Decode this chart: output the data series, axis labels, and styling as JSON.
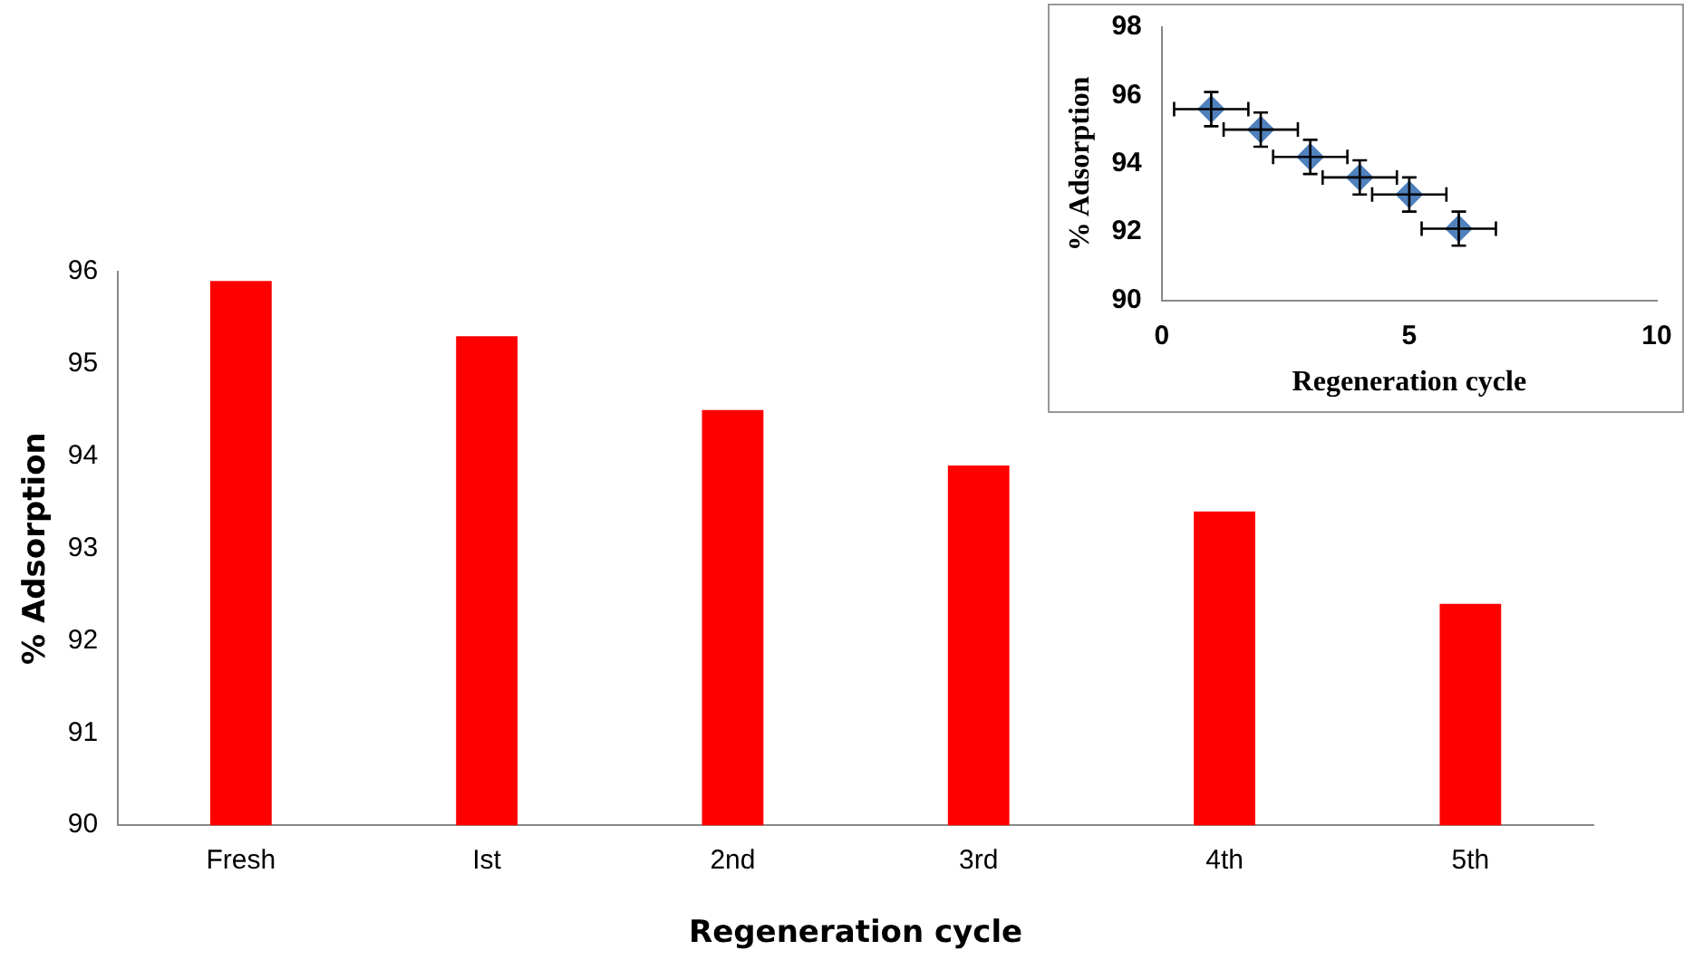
{
  "chart_data": [
    {
      "type": "bar",
      "xlabel": "Regeneration cycle",
      "ylabel": "% Adsorption",
      "categories": [
        "Fresh",
        "Ist",
        "2nd",
        "3rd",
        "4th",
        "5th"
      ],
      "values": [
        95.9,
        95.3,
        94.5,
        93.9,
        93.4,
        92.4
      ],
      "color": "#ff0000",
      "ylim": [
        90,
        96
      ],
      "yticks": [
        90,
        91,
        92,
        93,
        94,
        95,
        96
      ],
      "grid": false,
      "legend": false
    },
    {
      "type": "scatter",
      "xlabel": "Regeneration cycle",
      "ylabel": "% Adsorption",
      "x": [
        1,
        2,
        3,
        4,
        5,
        6
      ],
      "values": [
        95.6,
        95.0,
        94.2,
        93.6,
        93.1,
        92.1
      ],
      "errors": [
        0.5,
        0.5,
        0.5,
        0.5,
        0.5,
        0.5
      ],
      "xerrors": [
        0.75,
        0.75,
        0.75,
        0.75,
        0.75,
        0.75
      ],
      "color": "#4f81bd",
      "marker": "diamond",
      "xlim": [
        0,
        10
      ],
      "xticks": [
        0,
        5,
        10
      ],
      "ylim": [
        90,
        98
      ],
      "yticks": [
        90,
        92,
        94,
        96,
        98
      ],
      "grid": false,
      "legend": false
    }
  ]
}
